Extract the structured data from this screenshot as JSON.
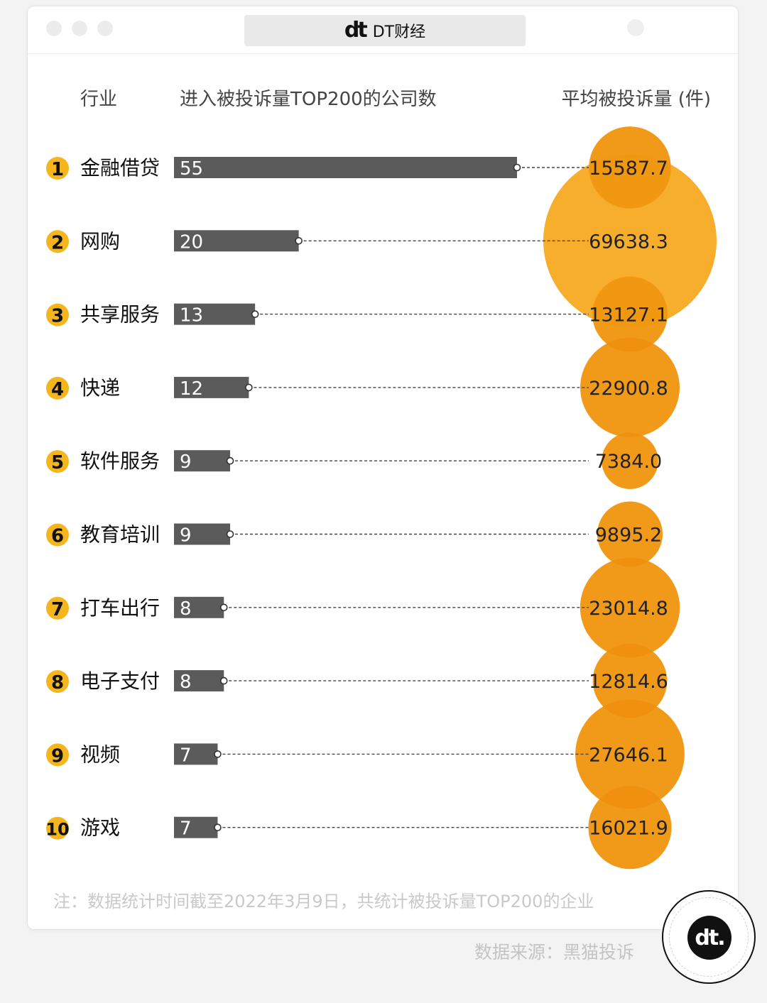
{
  "window": {
    "title": "DT财经",
    "logo": "dt"
  },
  "chart_data": {
    "type": "bar",
    "headers": {
      "industry": "行业",
      "companies": "进入被投诉量TOP200的公司数",
      "avg": "平均被投诉量 (件)"
    },
    "rows": [
      {
        "rank": "1",
        "industry": "金融借贷",
        "companies": 55,
        "avg": 15587.7,
        "avg_label": "15587.7"
      },
      {
        "rank": "2",
        "industry": "网购",
        "companies": 20,
        "avg": 69638.3,
        "avg_label": "69638.3"
      },
      {
        "rank": "3",
        "industry": "共享服务",
        "companies": 13,
        "avg": 13127.1,
        "avg_label": "13127.1"
      },
      {
        "rank": "4",
        "industry": "快递",
        "companies": 12,
        "avg": 22900.8,
        "avg_label": "22900.8"
      },
      {
        "rank": "5",
        "industry": "软件服务",
        "companies": 9,
        "avg": 7384.0,
        "avg_label": "7384.0"
      },
      {
        "rank": "6",
        "industry": "教育培训",
        "companies": 9,
        "avg": 9895.2,
        "avg_label": "9895.2"
      },
      {
        "rank": "7",
        "industry": "打车出行",
        "companies": 8,
        "avg": 23014.8,
        "avg_label": "23014.8"
      },
      {
        "rank": "8",
        "industry": "电子支付",
        "companies": 8,
        "avg": 12814.6,
        "avg_label": "12814.6"
      },
      {
        "rank": "9",
        "industry": "视频",
        "companies": 7,
        "avg": 27646.1,
        "avg_label": "27646.1"
      },
      {
        "rank": "10",
        "industry": "游戏",
        "companies": 7,
        "avg": 16021.9,
        "avg_label": "16021.9"
      }
    ],
    "colors": {
      "bar": "#5b5b5b",
      "rank_badge": "#f5b51c",
      "bubble": "#f6a71a",
      "bubble_overlap": "#ec8a0c",
      "leader": "#444444"
    },
    "note": "注：数据统计时间截至2022年3月9日，共统计被投诉量TOP200的企业"
  },
  "footer": {
    "source": "数据来源：黑猫投诉",
    "badge_logo": "dt."
  }
}
